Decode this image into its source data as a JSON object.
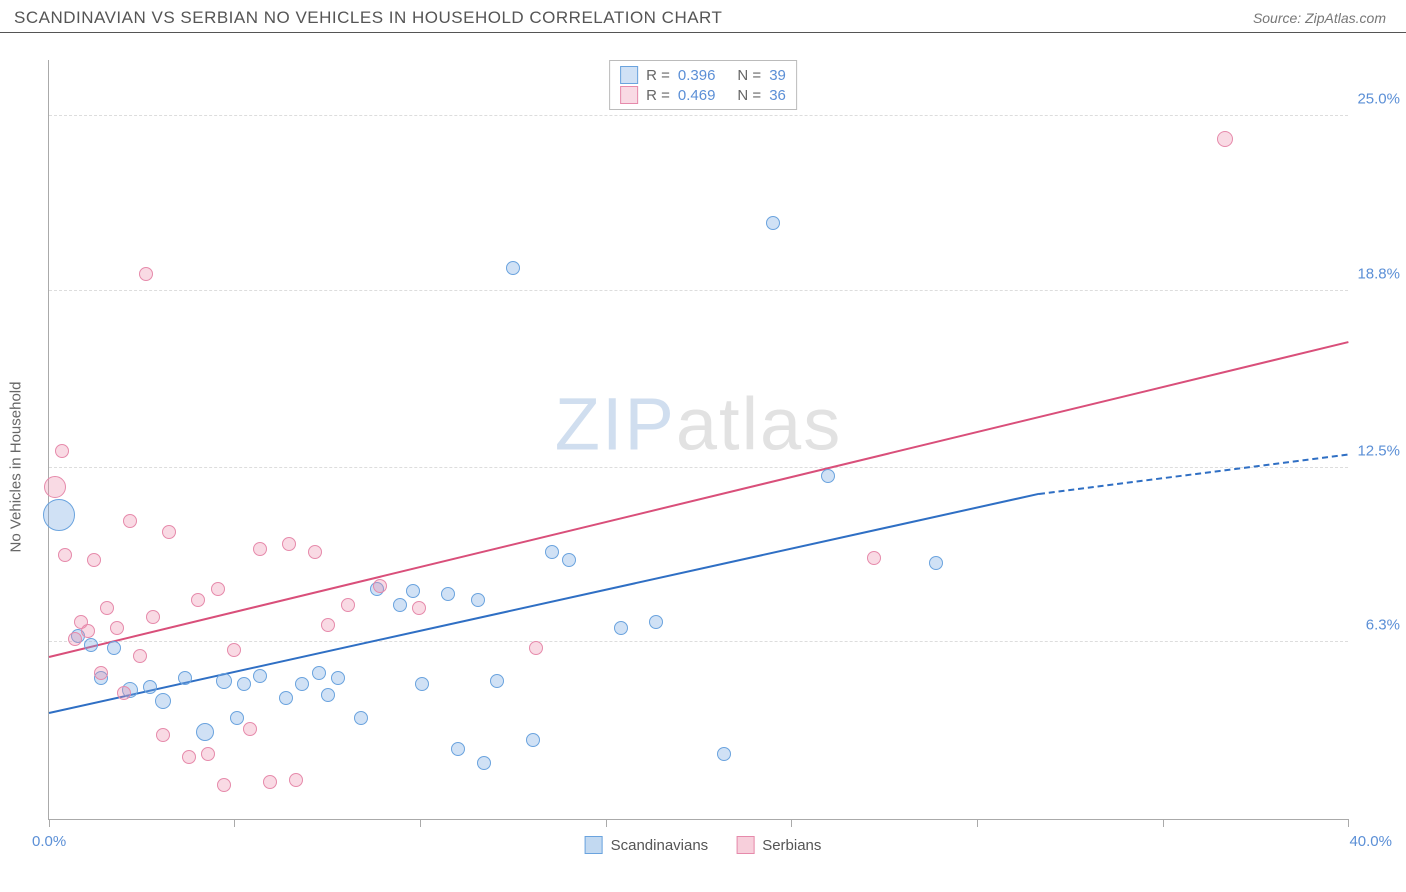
{
  "header": {
    "title": "SCANDINAVIAN VS SERBIAN NO VEHICLES IN HOUSEHOLD CORRELATION CHART",
    "source": "Source: ZipAtlas.com"
  },
  "chart": {
    "type": "scatter",
    "ylabel": "No Vehicles in Household",
    "xlim": [
      0,
      40
    ],
    "ylim": [
      0,
      27
    ],
    "xmin_label": "0.0%",
    "xmax_label": "40.0%",
    "xtick_positions": [
      0,
      5.71,
      11.43,
      17.14,
      22.86,
      28.57,
      34.29,
      40.0
    ],
    "ygrid": [
      {
        "y": 6.3,
        "label": "6.3%"
      },
      {
        "y": 12.5,
        "label": "12.5%"
      },
      {
        "y": 18.8,
        "label": "18.8%"
      },
      {
        "y": 25.0,
        "label": "25.0%"
      }
    ],
    "background_color": "#ffffff",
    "grid_color": "#dddddd",
    "axis_color": "#aaaaaa",
    "tick_label_color": "#5b8fd6",
    "watermark": {
      "z": "ZIP",
      "rest": "atlas"
    },
    "series": [
      {
        "name": "Scandinavians",
        "fill": "rgba(120,170,225,0.35)",
        "stroke": "#6aa3de",
        "line_color": "#2f6fc4",
        "r_value": "0.396",
        "n_value": "39",
        "trend": {
          "x1": 0,
          "y1": 3.8,
          "x2": 30.5,
          "y2": 11.6,
          "dash_to_x": 40.0,
          "dash_to_y": 13.0
        },
        "points": [
          {
            "x": 0.3,
            "y": 10.8,
            "r": 16
          },
          {
            "x": 0.9,
            "y": 6.5,
            "r": 7
          },
          {
            "x": 1.3,
            "y": 6.2,
            "r": 7
          },
          {
            "x": 1.6,
            "y": 5.0,
            "r": 7
          },
          {
            "x": 2.0,
            "y": 6.1,
            "r": 7
          },
          {
            "x": 2.5,
            "y": 4.6,
            "r": 8
          },
          {
            "x": 3.1,
            "y": 4.7,
            "r": 7
          },
          {
            "x": 3.5,
            "y": 4.2,
            "r": 8
          },
          {
            "x": 4.2,
            "y": 5.0,
            "r": 7
          },
          {
            "x": 4.8,
            "y": 3.1,
            "r": 9
          },
          {
            "x": 5.4,
            "y": 4.9,
            "r": 8
          },
          {
            "x": 5.8,
            "y": 3.6,
            "r": 7
          },
          {
            "x": 6.0,
            "y": 4.8,
            "r": 7
          },
          {
            "x": 6.5,
            "y": 5.1,
            "r": 7
          },
          {
            "x": 7.3,
            "y": 4.3,
            "r": 7
          },
          {
            "x": 7.8,
            "y": 4.8,
            "r": 7
          },
          {
            "x": 8.3,
            "y": 5.2,
            "r": 7
          },
          {
            "x": 8.6,
            "y": 4.4,
            "r": 7
          },
          {
            "x": 8.9,
            "y": 5.0,
            "r": 7
          },
          {
            "x": 9.6,
            "y": 3.6,
            "r": 7
          },
          {
            "x": 10.1,
            "y": 8.2,
            "r": 7
          },
          {
            "x": 10.8,
            "y": 7.6,
            "r": 7
          },
          {
            "x": 11.2,
            "y": 8.1,
            "r": 7
          },
          {
            "x": 11.5,
            "y": 4.8,
            "r": 7
          },
          {
            "x": 12.3,
            "y": 8.0,
            "r": 7
          },
          {
            "x": 12.6,
            "y": 2.5,
            "r": 7
          },
          {
            "x": 13.2,
            "y": 7.8,
            "r": 7
          },
          {
            "x": 13.4,
            "y": 2.0,
            "r": 7
          },
          {
            "x": 13.8,
            "y": 4.9,
            "r": 7
          },
          {
            "x": 14.3,
            "y": 19.6,
            "r": 7
          },
          {
            "x": 14.9,
            "y": 2.8,
            "r": 7
          },
          {
            "x": 15.5,
            "y": 9.5,
            "r": 7
          },
          {
            "x": 16.0,
            "y": 9.2,
            "r": 7
          },
          {
            "x": 17.6,
            "y": 6.8,
            "r": 7
          },
          {
            "x": 18.7,
            "y": 7.0,
            "r": 7
          },
          {
            "x": 20.8,
            "y": 2.3,
            "r": 7
          },
          {
            "x": 22.3,
            "y": 21.2,
            "r": 7
          },
          {
            "x": 24.0,
            "y": 12.2,
            "r": 7
          },
          {
            "x": 27.3,
            "y": 9.1,
            "r": 7
          }
        ]
      },
      {
        "name": "Serbians",
        "fill": "rgba(235,140,170,0.32)",
        "stroke": "#e68aab",
        "line_color": "#d94f7a",
        "r_value": "0.469",
        "n_value": "36",
        "trend": {
          "x1": 0,
          "y1": 5.8,
          "x2": 40.0,
          "y2": 17.0
        },
        "points": [
          {
            "x": 0.2,
            "y": 11.8,
            "r": 11
          },
          {
            "x": 0.4,
            "y": 13.1,
            "r": 7
          },
          {
            "x": 0.5,
            "y": 9.4,
            "r": 7
          },
          {
            "x": 0.8,
            "y": 6.4,
            "r": 7
          },
          {
            "x": 1.0,
            "y": 7.0,
            "r": 7
          },
          {
            "x": 1.2,
            "y": 6.7,
            "r": 7
          },
          {
            "x": 1.4,
            "y": 9.2,
            "r": 7
          },
          {
            "x": 1.6,
            "y": 5.2,
            "r": 7
          },
          {
            "x": 1.8,
            "y": 7.5,
            "r": 7
          },
          {
            "x": 2.1,
            "y": 6.8,
            "r": 7
          },
          {
            "x": 2.3,
            "y": 4.5,
            "r": 7
          },
          {
            "x": 2.5,
            "y": 10.6,
            "r": 7
          },
          {
            "x": 2.8,
            "y": 5.8,
            "r": 7
          },
          {
            "x": 3.0,
            "y": 19.4,
            "r": 7
          },
          {
            "x": 3.2,
            "y": 7.2,
            "r": 7
          },
          {
            "x": 3.5,
            "y": 3.0,
            "r": 7
          },
          {
            "x": 3.7,
            "y": 10.2,
            "r": 7
          },
          {
            "x": 4.3,
            "y": 2.2,
            "r": 7
          },
          {
            "x": 4.6,
            "y": 7.8,
            "r": 7
          },
          {
            "x": 4.9,
            "y": 2.3,
            "r": 7
          },
          {
            "x": 5.2,
            "y": 8.2,
            "r": 7
          },
          {
            "x": 5.4,
            "y": 1.2,
            "r": 7
          },
          {
            "x": 5.7,
            "y": 6.0,
            "r": 7
          },
          {
            "x": 6.2,
            "y": 3.2,
            "r": 7
          },
          {
            "x": 6.5,
            "y": 9.6,
            "r": 7
          },
          {
            "x": 6.8,
            "y": 1.3,
            "r": 7
          },
          {
            "x": 7.4,
            "y": 9.8,
            "r": 7
          },
          {
            "x": 7.6,
            "y": 1.4,
            "r": 7
          },
          {
            "x": 8.2,
            "y": 9.5,
            "r": 7
          },
          {
            "x": 8.6,
            "y": 6.9,
            "r": 7
          },
          {
            "x": 9.2,
            "y": 7.6,
            "r": 7
          },
          {
            "x": 10.2,
            "y": 8.3,
            "r": 7
          },
          {
            "x": 11.4,
            "y": 7.5,
            "r": 7
          },
          {
            "x": 15.0,
            "y": 6.1,
            "r": 7
          },
          {
            "x": 25.4,
            "y": 9.3,
            "r": 7
          },
          {
            "x": 36.2,
            "y": 24.2,
            "r": 8
          }
        ]
      }
    ],
    "legend_bottom": [
      {
        "label": "Scandinavians",
        "fill": "rgba(120,170,225,0.45)",
        "stroke": "#6aa3de"
      },
      {
        "label": "Serbians",
        "fill": "rgba(235,140,170,0.42)",
        "stroke": "#e68aab"
      }
    ]
  }
}
